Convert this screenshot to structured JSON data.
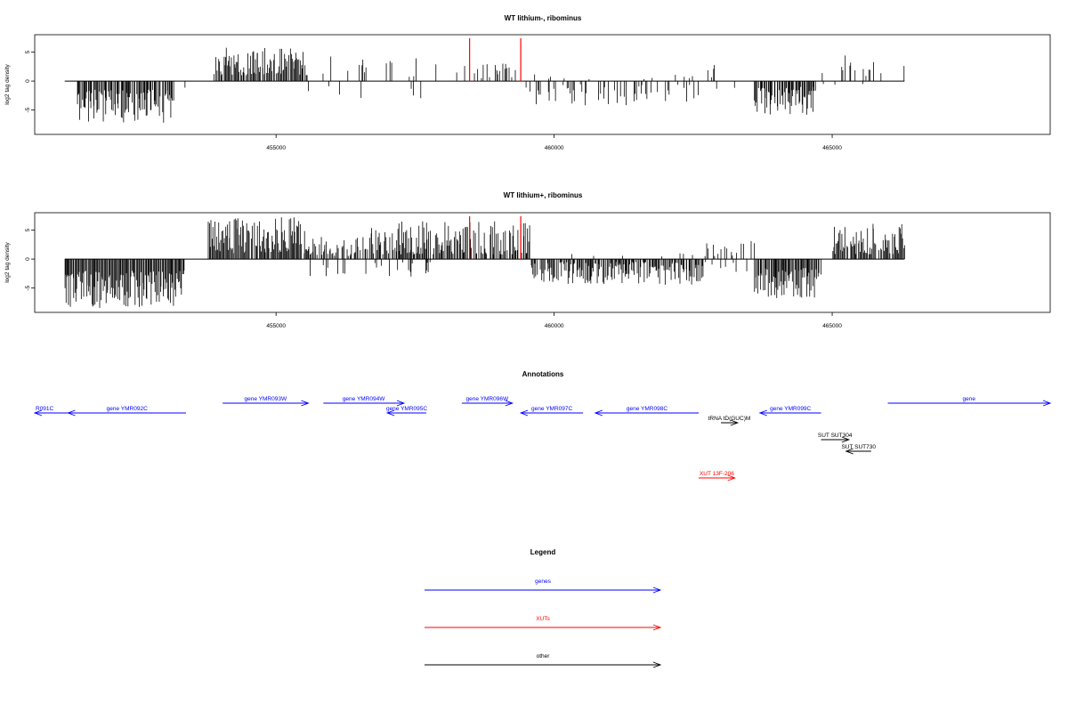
{
  "chart_data": [
    {
      "type": "bar",
      "title": "WT lithium-, ribominus",
      "ylabel": "log2 tag density",
      "xlim": [
        450660,
        468920
      ],
      "ylim": [
        -9.2,
        8.0
      ],
      "xticks": [
        455000,
        460000,
        465000
      ],
      "yticks": [
        5,
        0,
        -5
      ],
      "baseline": 0,
      "baseline_range": [
        451200,
        466300
      ],
      "highlight_positions": [
        458480,
        459400
      ],
      "highlight_color": "#ff0000",
      "bar_color": "#000000",
      "segments": [
        {
          "start": 451200,
          "end": 451220,
          "sign": -1,
          "min": 1.5,
          "max": 3.0,
          "density": 0.4
        },
        {
          "start": 451420,
          "end": 453150,
          "sign": -1,
          "min": 1.5,
          "max": 7.2,
          "density": 0.9
        },
        {
          "start": 453350,
          "end": 453380,
          "sign": -1,
          "min": 0.8,
          "max": 1.2,
          "density": 0.3
        },
        {
          "start": 453880,
          "end": 455550,
          "sign": 1,
          "min": 1.0,
          "max": 5.8,
          "density": 0.9
        },
        {
          "start": 455550,
          "end": 458450,
          "sign": 1,
          "min": 0.5,
          "max": 4.5,
          "density": 0.12
        },
        {
          "start": 455560,
          "end": 458000,
          "sign": -1,
          "min": 0.5,
          "max": 3.0,
          "density": 0.04
        },
        {
          "start": 458450,
          "end": 459350,
          "sign": 1,
          "min": 0.5,
          "max": 3.2,
          "density": 0.3
        },
        {
          "start": 459350,
          "end": 462600,
          "sign": -1,
          "min": 0.5,
          "max": 4.2,
          "density": 0.3
        },
        {
          "start": 459500,
          "end": 462500,
          "sign": 1,
          "min": 0.3,
          "max": 1.2,
          "density": 0.04
        },
        {
          "start": 462600,
          "end": 463100,
          "sign": 1,
          "min": 0.5,
          "max": 3.0,
          "density": 0.12
        },
        {
          "start": 462600,
          "end": 463600,
          "sign": -1,
          "min": 0.5,
          "max": 2.0,
          "density": 0.08
        },
        {
          "start": 463600,
          "end": 464700,
          "sign": -1,
          "min": 1.0,
          "max": 5.8,
          "density": 0.9
        },
        {
          "start": 464700,
          "end": 466300,
          "sign": 1,
          "min": 0.5,
          "max": 5.0,
          "density": 0.14
        },
        {
          "start": 464800,
          "end": 465600,
          "sign": -1,
          "min": 0.5,
          "max": 2.0,
          "density": 0.06
        }
      ]
    },
    {
      "type": "bar",
      "title": "WT lithium+, ribominus",
      "ylabel": "log2 tag density",
      "xlim": [
        450660,
        468920
      ],
      "ylim": [
        -9.2,
        8.0
      ],
      "xticks": [
        455000,
        460000,
        465000
      ],
      "yticks": [
        5,
        0,
        -5
      ],
      "baseline": 0,
      "baseline_range": [
        451200,
        466300
      ],
      "highlight_positions": [
        458480,
        459400
      ],
      "highlight_color": "#ff0000",
      "bar_color": "#000000",
      "segments": [
        {
          "start": 451200,
          "end": 451220,
          "sign": -1,
          "min": 1.5,
          "max": 2.8,
          "density": 0.4
        },
        {
          "start": 451200,
          "end": 453350,
          "sign": -1,
          "min": 2.0,
          "max": 8.5,
          "density": 1.0
        },
        {
          "start": 453780,
          "end": 455600,
          "sign": 1,
          "min": 1.0,
          "max": 7.2,
          "density": 0.95
        },
        {
          "start": 455600,
          "end": 456700,
          "sign": 1,
          "min": 0.5,
          "max": 4.0,
          "density": 0.5
        },
        {
          "start": 455600,
          "end": 457800,
          "sign": -1,
          "min": 0.5,
          "max": 3.5,
          "density": 0.15
        },
        {
          "start": 456700,
          "end": 459550,
          "sign": 1,
          "min": 0.8,
          "max": 6.5,
          "density": 0.8
        },
        {
          "start": 459550,
          "end": 462700,
          "sign": -1,
          "min": 0.5,
          "max": 4.5,
          "density": 0.8
        },
        {
          "start": 460300,
          "end": 462700,
          "sign": 1,
          "min": 0.3,
          "max": 1.5,
          "density": 0.05
        },
        {
          "start": 462700,
          "end": 463600,
          "sign": 1,
          "min": 0.5,
          "max": 3.5,
          "density": 0.2
        },
        {
          "start": 462700,
          "end": 463600,
          "sign": -1,
          "min": 0.5,
          "max": 2.5,
          "density": 0.15
        },
        {
          "start": 463600,
          "end": 464800,
          "sign": -1,
          "min": 1.5,
          "max": 6.8,
          "density": 0.95
        },
        {
          "start": 465000,
          "end": 466300,
          "sign": 1,
          "min": 0.8,
          "max": 6.2,
          "density": 0.8
        }
      ]
    }
  ],
  "annotations": {
    "title": "Annotations",
    "items": [
      {
        "label": "R091C",
        "color": "#0000ff",
        "start": 450660,
        "end": 451260,
        "strand": "-",
        "row": 1
      },
      {
        "label": "gene YMR092C",
        "color": "#0000ff",
        "start": 451260,
        "end": 453380,
        "strand": "-",
        "row": 1
      },
      {
        "label": "gene YMR093W",
        "color": "#0000ff",
        "start": 454040,
        "end": 455580,
        "strand": "+",
        "row": 0
      },
      {
        "label": "gene YMR094W",
        "color": "#0000ff",
        "start": 455850,
        "end": 457300,
        "strand": "+",
        "row": 0
      },
      {
        "label": "gene YMR095C",
        "color": "#0000ff",
        "start": 457000,
        "end": 457700,
        "strand": "-",
        "row": 1
      },
      {
        "label": "gene YMR096W",
        "color": "#0000ff",
        "start": 458340,
        "end": 459250,
        "strand": "+",
        "row": 0
      },
      {
        "label": "gene YMR097C",
        "color": "#0000ff",
        "start": 459400,
        "end": 460520,
        "strand": "-",
        "row": 1
      },
      {
        "label": "gene YMR098C",
        "color": "#0000ff",
        "start": 460740,
        "end": 462600,
        "strand": "-",
        "row": 1
      },
      {
        "label": "tRNA tD(GUC)M",
        "color": "#000000",
        "start": 463000,
        "end": 463300,
        "strand": "+",
        "row": 2
      },
      {
        "label": "gene YMR099C",
        "color": "#0000ff",
        "start": 463700,
        "end": 464800,
        "strand": "-",
        "row": 1
      },
      {
        "label": "gene",
        "color": "#0000ff",
        "start": 466000,
        "end": 468920,
        "strand": "+",
        "row": 0
      },
      {
        "label": "SUT SUT304",
        "color": "#000000",
        "start": 464800,
        "end": 465300,
        "strand": "+",
        "row": 3
      },
      {
        "label": "SUT SUT730",
        "color": "#000000",
        "start": 465250,
        "end": 465700,
        "strand": "-",
        "row": 4
      },
      {
        "label": "XUT 13F-206",
        "color": "#ff0000",
        "start": 462600,
        "end": 463250,
        "strand": "+",
        "row": 5
      }
    ]
  },
  "legend": {
    "title": "Legend",
    "items": [
      {
        "label": "genes",
        "color": "#0000ff"
      },
      {
        "label": "XUTs",
        "color": "#ff0000"
      },
      {
        "label": "other",
        "color": "#000000"
      }
    ]
  }
}
